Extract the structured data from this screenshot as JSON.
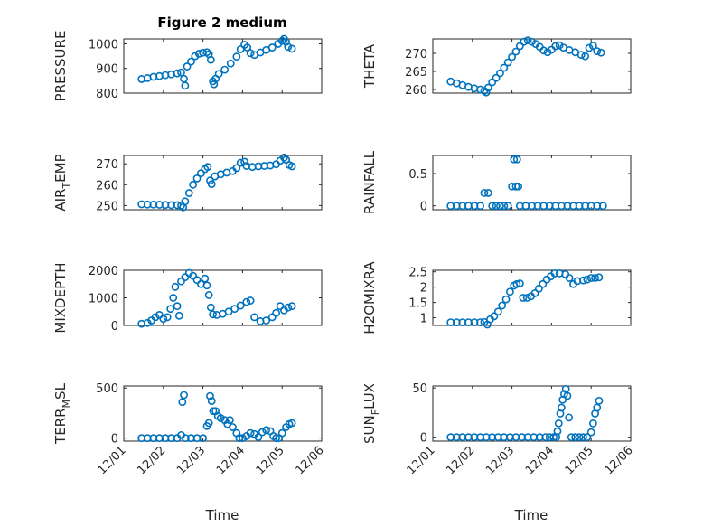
{
  "figure": {
    "title": "Figure 2 medium"
  },
  "style": {
    "marker_color": "#0072BD"
  },
  "chart_data": [
    {
      "type": "scatter",
      "ylabel": "PRESSURE",
      "ylim": [
        800,
        1020
      ],
      "yticks": [
        800,
        900,
        1000
      ],
      "yminor": [
        820,
        840,
        860,
        880,
        920,
        940,
        960,
        980
      ],
      "xlim": [
        1,
        6
      ],
      "xticks_labeled": false,
      "points": [
        [
          1.45,
          857
        ],
        [
          1.6,
          861
        ],
        [
          1.75,
          866
        ],
        [
          1.9,
          869
        ],
        [
          2.05,
          873
        ],
        [
          2.2,
          876
        ],
        [
          2.35,
          880
        ],
        [
          2.45,
          884
        ],
        [
          2.52,
          858
        ],
        [
          2.55,
          830
        ],
        [
          2.6,
          908
        ],
        [
          2.7,
          928
        ],
        [
          2.8,
          950
        ],
        [
          2.9,
          960
        ],
        [
          3.0,
          964
        ],
        [
          3.1,
          966
        ],
        [
          3.15,
          958
        ],
        [
          3.2,
          935
        ],
        [
          3.25,
          848
        ],
        [
          3.28,
          836
        ],
        [
          3.32,
          858
        ],
        [
          3.4,
          878
        ],
        [
          3.55,
          895
        ],
        [
          3.7,
          920
        ],
        [
          3.85,
          948
        ],
        [
          3.95,
          978
        ],
        [
          4.05,
          996
        ],
        [
          4.12,
          985
        ],
        [
          4.2,
          962
        ],
        [
          4.3,
          955
        ],
        [
          4.45,
          965
        ],
        [
          4.6,
          975
        ],
        [
          4.75,
          985
        ],
        [
          4.9,
          1000
        ],
        [
          5.0,
          1012
        ],
        [
          5.05,
          1020
        ],
        [
          5.1,
          1008
        ],
        [
          5.15,
          988
        ],
        [
          5.25,
          980
        ]
      ]
    },
    {
      "type": "scatter",
      "ylabel": "THETA",
      "ylim": [
        259,
        274
      ],
      "yticks": [
        260,
        265,
        270
      ],
      "yminor": [
        261,
        262,
        263,
        264,
        266,
        267,
        268,
        269,
        271,
        272,
        273
      ],
      "xlim": [
        1,
        6
      ],
      "xticks_labeled": false,
      "points": [
        [
          1.45,
          262.2
        ],
        [
          1.6,
          261.7
        ],
        [
          1.75,
          261.2
        ],
        [
          1.9,
          260.7
        ],
        [
          2.05,
          260.3
        ],
        [
          2.2,
          260.0
        ],
        [
          2.3,
          259.6
        ],
        [
          2.35,
          259.2
        ],
        [
          2.4,
          260.5
        ],
        [
          2.5,
          262.0
        ],
        [
          2.6,
          263.2
        ],
        [
          2.7,
          264.5
        ],
        [
          2.8,
          266.0
        ],
        [
          2.9,
          267.5
        ],
        [
          3.0,
          269.0
        ],
        [
          3.1,
          270.5
        ],
        [
          3.2,
          272.0
        ],
        [
          3.3,
          273.2
        ],
        [
          3.4,
          273.6
        ],
        [
          3.5,
          273.2
        ],
        [
          3.6,
          272.6
        ],
        [
          3.7,
          271.8
        ],
        [
          3.8,
          270.8
        ],
        [
          3.9,
          270.3
        ],
        [
          4.0,
          271.0
        ],
        [
          4.1,
          272.0
        ],
        [
          4.2,
          272.2
        ],
        [
          4.3,
          271.6
        ],
        [
          4.45,
          270.9
        ],
        [
          4.6,
          270.3
        ],
        [
          4.75,
          269.6
        ],
        [
          4.85,
          269.2
        ],
        [
          4.95,
          271.5
        ],
        [
          5.05,
          272.1
        ],
        [
          5.15,
          270.6
        ],
        [
          5.25,
          270.2
        ]
      ]
    },
    {
      "type": "scatter",
      "ylabel": "AIR_TEMP",
      "ylabel_main": "AIR",
      "ylabel_sub": "T",
      "ylabel_rest": "EMP",
      "ylim": [
        248,
        274
      ],
      "yticks": [
        250,
        260,
        270
      ],
      "yminor": [
        252,
        254,
        256,
        258,
        262,
        264,
        266,
        268,
        272
      ],
      "xlim": [
        1,
        6
      ],
      "xticks_labeled": false,
      "points": [
        [
          1.45,
          250.6
        ],
        [
          1.6,
          250.5
        ],
        [
          1.75,
          250.5
        ],
        [
          1.9,
          250.4
        ],
        [
          2.05,
          250.3
        ],
        [
          2.2,
          250.2
        ],
        [
          2.35,
          250.2
        ],
        [
          2.45,
          250.0
        ],
        [
          2.5,
          249.2
        ],
        [
          2.55,
          252.0
        ],
        [
          2.65,
          256.0
        ],
        [
          2.75,
          260.0
        ],
        [
          2.85,
          263.0
        ],
        [
          2.95,
          265.5
        ],
        [
          3.05,
          267.5
        ],
        [
          3.12,
          268.5
        ],
        [
          3.18,
          262.0
        ],
        [
          3.22,
          260.3
        ],
        [
          3.3,
          264.0
        ],
        [
          3.45,
          265.0
        ],
        [
          3.6,
          265.8
        ],
        [
          3.75,
          266.5
        ],
        [
          3.85,
          268.0
        ],
        [
          3.95,
          270.5
        ],
        [
          4.05,
          271.0
        ],
        [
          4.1,
          269.0
        ],
        [
          4.25,
          268.5
        ],
        [
          4.4,
          268.8
        ],
        [
          4.55,
          269.0
        ],
        [
          4.7,
          269.2
        ],
        [
          4.85,
          269.8
        ],
        [
          4.95,
          271.5
        ],
        [
          5.05,
          273.0
        ],
        [
          5.1,
          272.0
        ],
        [
          5.18,
          269.5
        ],
        [
          5.25,
          268.8
        ]
      ]
    },
    {
      "type": "scatter",
      "ylabel": "RAINFALL",
      "ylim": [
        -0.06,
        0.78
      ],
      "yticks": [
        0,
        0.5
      ],
      "yminor": [
        0.1,
        0.2,
        0.3,
        0.4,
        0.6,
        0.7
      ],
      "xlim": [
        1,
        6
      ],
      "xticks_labeled": false,
      "points": [
        [
          1.45,
          0
        ],
        [
          1.6,
          0
        ],
        [
          1.75,
          0
        ],
        [
          1.9,
          0
        ],
        [
          2.05,
          0
        ],
        [
          2.2,
          0
        ],
        [
          2.3,
          0.2
        ],
        [
          2.4,
          0.2
        ],
        [
          2.5,
          0
        ],
        [
          2.6,
          0
        ],
        [
          2.7,
          0
        ],
        [
          2.8,
          0
        ],
        [
          2.9,
          0
        ],
        [
          3.0,
          0.3
        ],
        [
          3.05,
          0.72
        ],
        [
          3.1,
          0.3
        ],
        [
          3.13,
          0.72
        ],
        [
          3.16,
          0.3
        ],
        [
          3.2,
          0
        ],
        [
          3.35,
          0
        ],
        [
          3.5,
          0
        ],
        [
          3.65,
          0
        ],
        [
          3.8,
          0
        ],
        [
          3.95,
          0
        ],
        [
          4.1,
          0
        ],
        [
          4.25,
          0
        ],
        [
          4.4,
          0
        ],
        [
          4.55,
          0
        ],
        [
          4.7,
          0
        ],
        [
          4.85,
          0
        ],
        [
          5.0,
          0
        ],
        [
          5.15,
          0
        ],
        [
          5.3,
          0
        ]
      ]
    },
    {
      "type": "scatter",
      "ylabel": "MIXDEPTH",
      "ylim": [
        0,
        2000
      ],
      "yticks": [
        0,
        1000,
        2000
      ],
      "yminor": [
        200,
        400,
        600,
        800,
        1200,
        1400,
        1600,
        1800
      ],
      "xlim": [
        1,
        6
      ],
      "xticks_labeled": false,
      "points": [
        [
          1.45,
          60
        ],
        [
          1.6,
          90
        ],
        [
          1.7,
          180
        ],
        [
          1.8,
          300
        ],
        [
          1.9,
          380
        ],
        [
          2.0,
          240
        ],
        [
          2.1,
          300
        ],
        [
          2.18,
          600
        ],
        [
          2.25,
          1000
        ],
        [
          2.3,
          1400
        ],
        [
          2.35,
          700
        ],
        [
          2.4,
          350
        ],
        [
          2.45,
          1600
        ],
        [
          2.55,
          1750
        ],
        [
          2.65,
          1900
        ],
        [
          2.75,
          1800
        ],
        [
          2.85,
          1650
        ],
        [
          2.95,
          1500
        ],
        [
          3.05,
          1700
        ],
        [
          3.1,
          1450
        ],
        [
          3.15,
          1100
        ],
        [
          3.2,
          650
        ],
        [
          3.25,
          400
        ],
        [
          3.35,
          380
        ],
        [
          3.5,
          420
        ],
        [
          3.65,
          500
        ],
        [
          3.8,
          600
        ],
        [
          3.95,
          720
        ],
        [
          4.1,
          850
        ],
        [
          4.2,
          900
        ],
        [
          4.3,
          300
        ],
        [
          4.45,
          150
        ],
        [
          4.6,
          180
        ],
        [
          4.75,
          300
        ],
        [
          4.85,
          450
        ],
        [
          4.95,
          700
        ],
        [
          5.05,
          550
        ],
        [
          5.15,
          650
        ],
        [
          5.25,
          700
        ]
      ]
    },
    {
      "type": "scatter",
      "ylabel": "H2OMIXRA",
      "ylim": [
        0.75,
        2.55
      ],
      "yticks": [
        1,
        1.5,
        2,
        2.5
      ],
      "yminor": [
        1.1,
        1.2,
        1.3,
        1.4,
        1.6,
        1.7,
        1.8,
        1.9,
        2.1,
        2.2,
        2.3,
        2.4
      ],
      "xlim": [
        1,
        6
      ],
      "xticks_labeled": false,
      "points": [
        [
          1.45,
          0.85
        ],
        [
          1.6,
          0.85
        ],
        [
          1.75,
          0.85
        ],
        [
          1.9,
          0.85
        ],
        [
          2.05,
          0.85
        ],
        [
          2.2,
          0.85
        ],
        [
          2.3,
          0.86
        ],
        [
          2.38,
          0.78
        ],
        [
          2.45,
          0.95
        ],
        [
          2.55,
          1.05
        ],
        [
          2.65,
          1.2
        ],
        [
          2.75,
          1.4
        ],
        [
          2.85,
          1.6
        ],
        [
          2.95,
          1.85
        ],
        [
          3.05,
          2.05
        ],
        [
          3.12,
          2.1
        ],
        [
          3.2,
          2.12
        ],
        [
          3.28,
          1.65
        ],
        [
          3.38,
          1.65
        ],
        [
          3.48,
          1.7
        ],
        [
          3.58,
          1.8
        ],
        [
          3.68,
          1.95
        ],
        [
          3.78,
          2.1
        ],
        [
          3.88,
          2.25
        ],
        [
          3.98,
          2.35
        ],
        [
          4.08,
          2.45
        ],
        [
          4.2,
          2.45
        ],
        [
          4.35,
          2.42
        ],
        [
          4.45,
          2.3
        ],
        [
          4.55,
          2.1
        ],
        [
          4.65,
          2.2
        ],
        [
          4.8,
          2.22
        ],
        [
          4.9,
          2.25
        ],
        [
          5.0,
          2.3
        ],
        [
          5.1,
          2.3
        ],
        [
          5.2,
          2.32
        ]
      ]
    },
    {
      "type": "scatter",
      "ylabel": "TERR_MSL",
      "ylabel_main": "TERR",
      "ylabel_sub": "M",
      "ylabel_rest": "SL",
      "ylim": [
        -30,
        520
      ],
      "yticks": [
        0,
        500
      ],
      "yminor": [
        100,
        200,
        300,
        400
      ],
      "xlim": [
        1,
        6
      ],
      "xticks_labeled": true,
      "points": [
        [
          1.45,
          0
        ],
        [
          1.6,
          0
        ],
        [
          1.75,
          0
        ],
        [
          1.9,
          0
        ],
        [
          2.05,
          0
        ],
        [
          2.2,
          0
        ],
        [
          2.35,
          0
        ],
        [
          2.45,
          30
        ],
        [
          2.48,
          360
        ],
        [
          2.52,
          430
        ],
        [
          2.56,
          0
        ],
        [
          2.7,
          0
        ],
        [
          2.85,
          0
        ],
        [
          3.0,
          0
        ],
        [
          3.1,
          120
        ],
        [
          3.15,
          150
        ],
        [
          3.18,
          420
        ],
        [
          3.22,
          370
        ],
        [
          3.26,
          270
        ],
        [
          3.32,
          270
        ],
        [
          3.38,
          220
        ],
        [
          3.45,
          200
        ],
        [
          3.55,
          180
        ],
        [
          3.62,
          140
        ],
        [
          3.68,
          180
        ],
        [
          3.75,
          110
        ],
        [
          3.85,
          50
        ],
        [
          3.92,
          0
        ],
        [
          4.0,
          0
        ],
        [
          4.1,
          20
        ],
        [
          4.2,
          50
        ],
        [
          4.3,
          40
        ],
        [
          4.4,
          10
        ],
        [
          4.5,
          60
        ],
        [
          4.6,
          80
        ],
        [
          4.7,
          70
        ],
        [
          4.78,
          20
        ],
        [
          4.85,
          0
        ],
        [
          4.92,
          0
        ],
        [
          5.0,
          50
        ],
        [
          5.1,
          110
        ],
        [
          5.18,
          140
        ],
        [
          5.25,
          150
        ]
      ]
    },
    {
      "type": "scatter",
      "ylabel": "SUN_FLUX",
      "ylabel_main": "SUN",
      "ylabel_sub": "F",
      "ylabel_rest": "LUX",
      "ylim": [
        -4,
        52
      ],
      "yticks": [
        0,
        50
      ],
      "yminor": [
        10,
        20,
        30,
        40
      ],
      "xlim": [
        1,
        6
      ],
      "xticks_labeled": true,
      "points": [
        [
          1.45,
          0
        ],
        [
          1.6,
          0
        ],
        [
          1.75,
          0
        ],
        [
          1.9,
          0
        ],
        [
          2.05,
          0
        ],
        [
          2.2,
          0
        ],
        [
          2.35,
          0
        ],
        [
          2.5,
          0
        ],
        [
          2.65,
          0
        ],
        [
          2.8,
          0
        ],
        [
          2.95,
          0
        ],
        [
          3.1,
          0
        ],
        [
          3.25,
          0
        ],
        [
          3.4,
          0
        ],
        [
          3.55,
          0
        ],
        [
          3.7,
          0
        ],
        [
          3.85,
          0
        ],
        [
          3.95,
          0
        ],
        [
          4.05,
          0
        ],
        [
          4.12,
          0
        ],
        [
          4.15,
          6
        ],
        [
          4.18,
          14
        ],
        [
          4.22,
          24
        ],
        [
          4.25,
          30
        ],
        [
          4.28,
          38
        ],
        [
          4.32,
          44
        ],
        [
          4.36,
          49
        ],
        [
          4.4,
          42
        ],
        [
          4.44,
          20
        ],
        [
          4.5,
          0
        ],
        [
          4.6,
          0
        ],
        [
          4.7,
          0
        ],
        [
          4.8,
          0
        ],
        [
          4.9,
          0
        ],
        [
          5.0,
          5
        ],
        [
          5.05,
          14
        ],
        [
          5.1,
          24
        ],
        [
          5.15,
          30
        ],
        [
          5.2,
          37
        ]
      ]
    }
  ],
  "x_axis": {
    "tick_values": [
      1,
      2,
      3,
      4,
      5,
      6
    ],
    "tick_labels": [
      "12/01",
      "12/02",
      "12/03",
      "12/04",
      "12/05",
      "12/06"
    ],
    "minor_values": [
      1.2,
      1.4,
      1.6,
      1.8,
      2.2,
      2.4,
      2.6,
      2.8,
      3.2,
      3.4,
      3.6,
      3.8,
      4.2,
      4.4,
      4.6,
      4.8,
      5.2,
      5.4,
      5.6,
      5.8
    ],
    "label": "Time"
  }
}
